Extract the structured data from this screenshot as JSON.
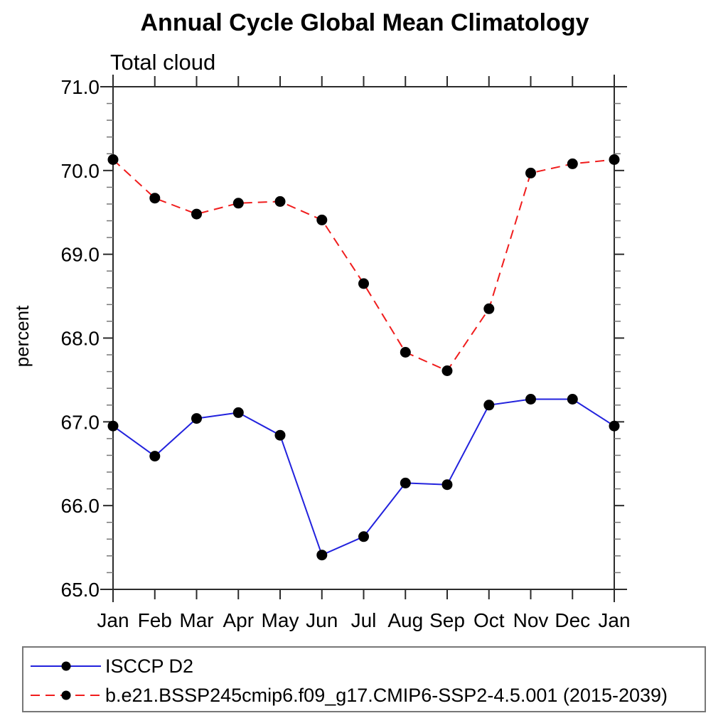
{
  "chart_data": {
    "type": "line",
    "title": "Annual Cycle Global Mean Climatology",
    "subtitle": "Total cloud",
    "xlabel": "",
    "ylabel": "percent",
    "categories": [
      "Jan",
      "Feb",
      "Mar",
      "Apr",
      "May",
      "Jun",
      "Jul",
      "Aug",
      "Sep",
      "Oct",
      "Nov",
      "Dec",
      "Jan"
    ],
    "ylim": [
      65.0,
      71.0
    ],
    "ymajor_step": 1.0,
    "yminor_step": 0.2,
    "ytick_label_format": "one-decimal",
    "grid": false,
    "legend_position": "bottom-left-box",
    "frame": "box-with-outward-ticks",
    "series": [
      {
        "name": "ISCCP D2",
        "color": "#2222dd",
        "line_style": "solid",
        "marker": "filled-circle",
        "marker_color": "#000000",
        "values": [
          66.95,
          66.59,
          67.04,
          67.11,
          66.84,
          65.41,
          65.63,
          66.27,
          66.25,
          67.2,
          67.27,
          67.27,
          66.95
        ]
      },
      {
        "name": "b.e21.BSSP245cmip6.f09_g17.CMIP6-SSP2-4.5.001 (2015-2039)",
        "color": "#f01d1d",
        "line_style": "dashed",
        "marker": "filled-circle",
        "marker_color": "#000000",
        "values": [
          70.13,
          69.67,
          69.48,
          69.61,
          69.63,
          69.41,
          68.65,
          67.83,
          67.61,
          68.35,
          69.97,
          70.08,
          70.13
        ]
      }
    ],
    "axis_color": "#2b2b2b",
    "minor_tick_color": "#777777"
  }
}
